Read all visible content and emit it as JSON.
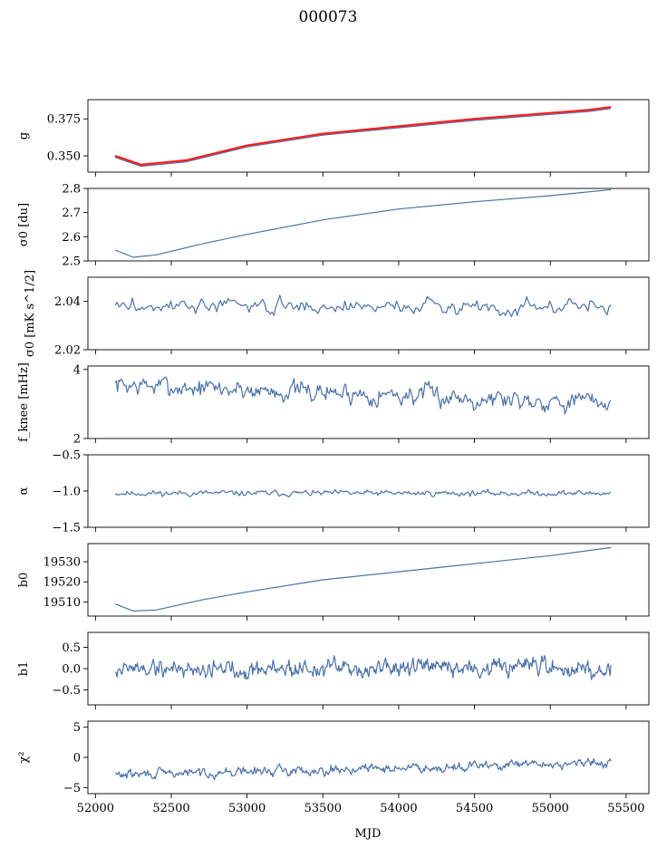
{
  "title": "000073",
  "xlabel": "MJD",
  "colors": {
    "series": "#4c72a8",
    "overlay": "#ff1a1a",
    "axis": "#000000"
  },
  "x_axis": {
    "range": [
      51950,
      55650
    ],
    "ticks": [
      52000,
      52500,
      53000,
      53500,
      54000,
      54500,
      55000,
      55500
    ]
  },
  "chart_data": [
    {
      "type": "line",
      "ylabel": "g",
      "ylim": [
        0.339,
        0.388
      ],
      "yticks": [
        0.35,
        0.375
      ],
      "ytick_labels": [
        "0.350",
        "0.375"
      ],
      "series": [
        {
          "color": "#4c72a8",
          "kind": "smooth",
          "x": [
            52130,
            52300,
            52600,
            53000,
            53500,
            54000,
            54500,
            55000,
            55250,
            55400
          ],
          "y": [
            0.349,
            0.343,
            0.346,
            0.356,
            0.364,
            0.369,
            0.374,
            0.378,
            0.38,
            0.382
          ]
        },
        {
          "color": "#ff1a1a",
          "kind": "smooth",
          "x": [
            52130,
            52300,
            52600,
            53000,
            53500,
            54000,
            54500,
            55000,
            55250,
            55400
          ],
          "y": [
            0.35,
            0.344,
            0.347,
            0.357,
            0.365,
            0.37,
            0.375,
            0.379,
            0.381,
            0.383
          ]
        }
      ]
    },
    {
      "type": "line",
      "ylabel": "σ0 [du]",
      "ylim": [
        2.5,
        2.8
      ],
      "yticks": [
        2.5,
        2.6,
        2.7,
        2.8
      ],
      "ytick_labels": [
        "2.5",
        "2.6",
        "2.7",
        "2.8"
      ],
      "series": [
        {
          "color": "#4c72a8",
          "kind": "smooth",
          "x": [
            52130,
            52250,
            52400,
            52700,
            53000,
            53500,
            54000,
            54500,
            55000,
            55400
          ],
          "y": [
            2.545,
            2.515,
            2.525,
            2.57,
            2.61,
            2.67,
            2.715,
            2.745,
            2.77,
            2.795
          ]
        }
      ]
    },
    {
      "type": "line",
      "ylabel": "σ0 [mK s^1/2]",
      "ylim": [
        2.02,
        2.05
      ],
      "yticks": [
        2.02,
        2.04
      ],
      "ytick_labels": [
        "2.02",
        "2.04"
      ],
      "series": [
        {
          "color": "#4c72a8",
          "kind": "noise",
          "x_range": [
            52130,
            55400
          ],
          "n": 260,
          "mean": 2.038,
          "amp": 0.0045,
          "seed": 3
        }
      ]
    },
    {
      "type": "line",
      "ylabel": "f_knee [mHz]",
      "ylim": [
        2,
        4.1
      ],
      "yticks": [
        2,
        4
      ],
      "ytick_labels": [
        "2",
        "4"
      ],
      "series": [
        {
          "color": "#4c72a8",
          "kind": "noise",
          "x_range": [
            52130,
            55400
          ],
          "n": 420,
          "mean_start": 3.55,
          "mean_end": 3.05,
          "amp": 0.42,
          "seed": 7
        }
      ]
    },
    {
      "type": "line",
      "ylabel": "α",
      "ylim": [
        -1.5,
        -0.5
      ],
      "yticks": [
        -1.5,
        -1.0,
        -0.5
      ],
      "ytick_labels": [
        "−1.5",
        "−1.0",
        "−0.5"
      ],
      "series": [
        {
          "color": "#4c72a8",
          "kind": "noise",
          "x_range": [
            52130,
            55400
          ],
          "n": 420,
          "mean": -1.03,
          "amp": 0.055,
          "seed": 11
        }
      ]
    },
    {
      "type": "line",
      "ylabel": "b0",
      "ylim": [
        19503,
        19539
      ],
      "yticks": [
        19510,
        19520,
        19530
      ],
      "ytick_labels": [
        "19510",
        "19520",
        "19530"
      ],
      "series": [
        {
          "color": "#4c72a8",
          "kind": "smooth",
          "x": [
            52130,
            52250,
            52400,
            52700,
            53000,
            53500,
            54000,
            54500,
            55000,
            55400
          ],
          "y": [
            19509,
            19505.5,
            19506,
            19511,
            19515,
            19521,
            19525,
            19529,
            19533,
            19537
          ]
        }
      ]
    },
    {
      "type": "line",
      "ylabel": "b1",
      "ylim": [
        -0.85,
        0.85
      ],
      "yticks": [
        -0.5,
        0.0,
        0.5
      ],
      "ytick_labels": [
        "−0.5",
        "0.0",
        "0.5"
      ],
      "series": [
        {
          "color": "#4c72a8",
          "kind": "noise",
          "x_range": [
            52130,
            55400
          ],
          "n": 560,
          "mean": 0.0,
          "amp": 0.32,
          "seed": 19
        }
      ]
    },
    {
      "type": "line",
      "ylabel": "χ²",
      "ylim": [
        -6,
        6
      ],
      "yticks": [
        -5,
        0,
        5
      ],
      "ytick_labels": [
        "−5",
        "0",
        "5"
      ],
      "series": [
        {
          "color": "#4c72a8",
          "kind": "noise",
          "x_range": [
            52130,
            55400
          ],
          "n": 520,
          "mean_start": -2.9,
          "mean_end": -0.9,
          "amp": 1.1,
          "seed": 29
        }
      ]
    }
  ]
}
